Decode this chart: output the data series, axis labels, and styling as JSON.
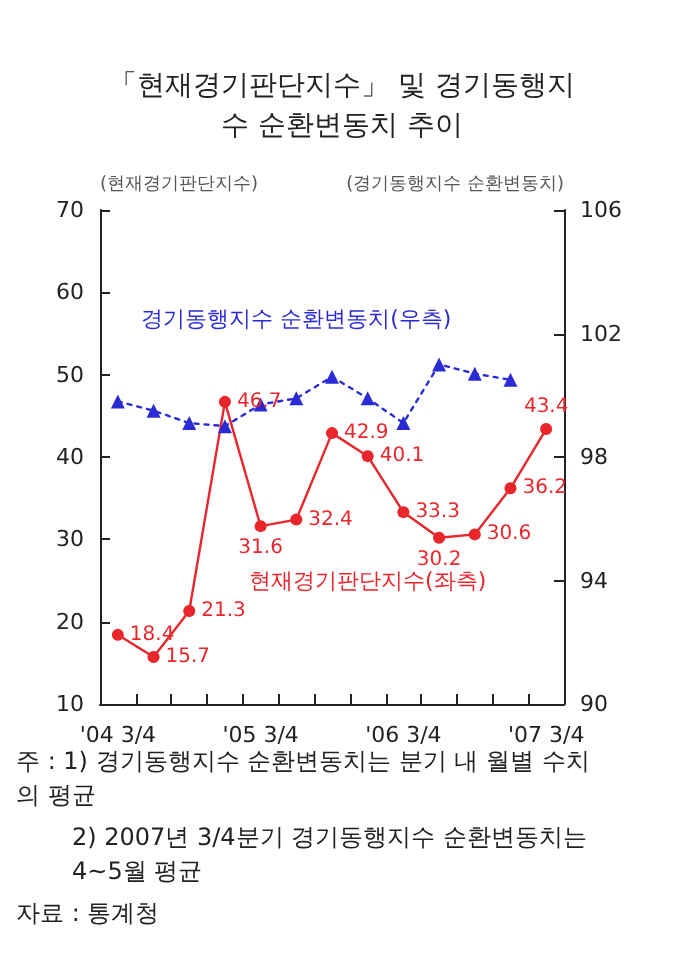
{
  "chart_data": {
    "type": "line",
    "title": "「현재경기판단지수」 및 경기동행지수 순환변동치 추이",
    "ylabel": "(현재경기판단지수)",
    "y2label": "(경기동행지수 순환변동치)",
    "categories": [
      "'04 3/4",
      null,
      null,
      null,
      "'05 3/4",
      null,
      null,
      null,
      "'06 3/4",
      null,
      null,
      null,
      "'07 3/4"
    ],
    "series": [
      {
        "name": "현재경기판단지수(좌측)",
        "color": "#e8262b",
        "marker": "circle",
        "line_style": "solid",
        "data_labels": true,
        "values": [
          18.4,
          15.7,
          21.3,
          46.7,
          31.6,
          32.4,
          42.9,
          40.1,
          33.3,
          30.2,
          30.6,
          36.2,
          43.4
        ]
      },
      {
        "name": "경기동행지수 순환변동치(우측)",
        "color": "#2b2bd6",
        "marker": "triangle",
        "line_style": "dotted",
        "axis": "y2",
        "values": [
          99.8,
          99.5,
          99.1,
          99.0,
          99.7,
          99.9,
          100.6,
          99.9,
          99.1,
          101.0,
          100.7,
          100.5,
          null
        ]
      }
    ],
    "ylim": [
      10,
      70
    ],
    "yticks": [
      10,
      20,
      30,
      40,
      50,
      60,
      70
    ],
    "y2lim": [
      90,
      106
    ],
    "y2ticks": [
      90,
      94,
      98,
      102,
      106
    ],
    "grid": false,
    "legend": false,
    "annotations": [
      "주 : 1) 경기동행지수 순환변동치는 분기 내 월별 수치의 평균",
      "2) 2007년 3/4분기 경기동행지수 순환변동치는 4~5월 평균",
      "자료 : 통계청"
    ]
  }
}
